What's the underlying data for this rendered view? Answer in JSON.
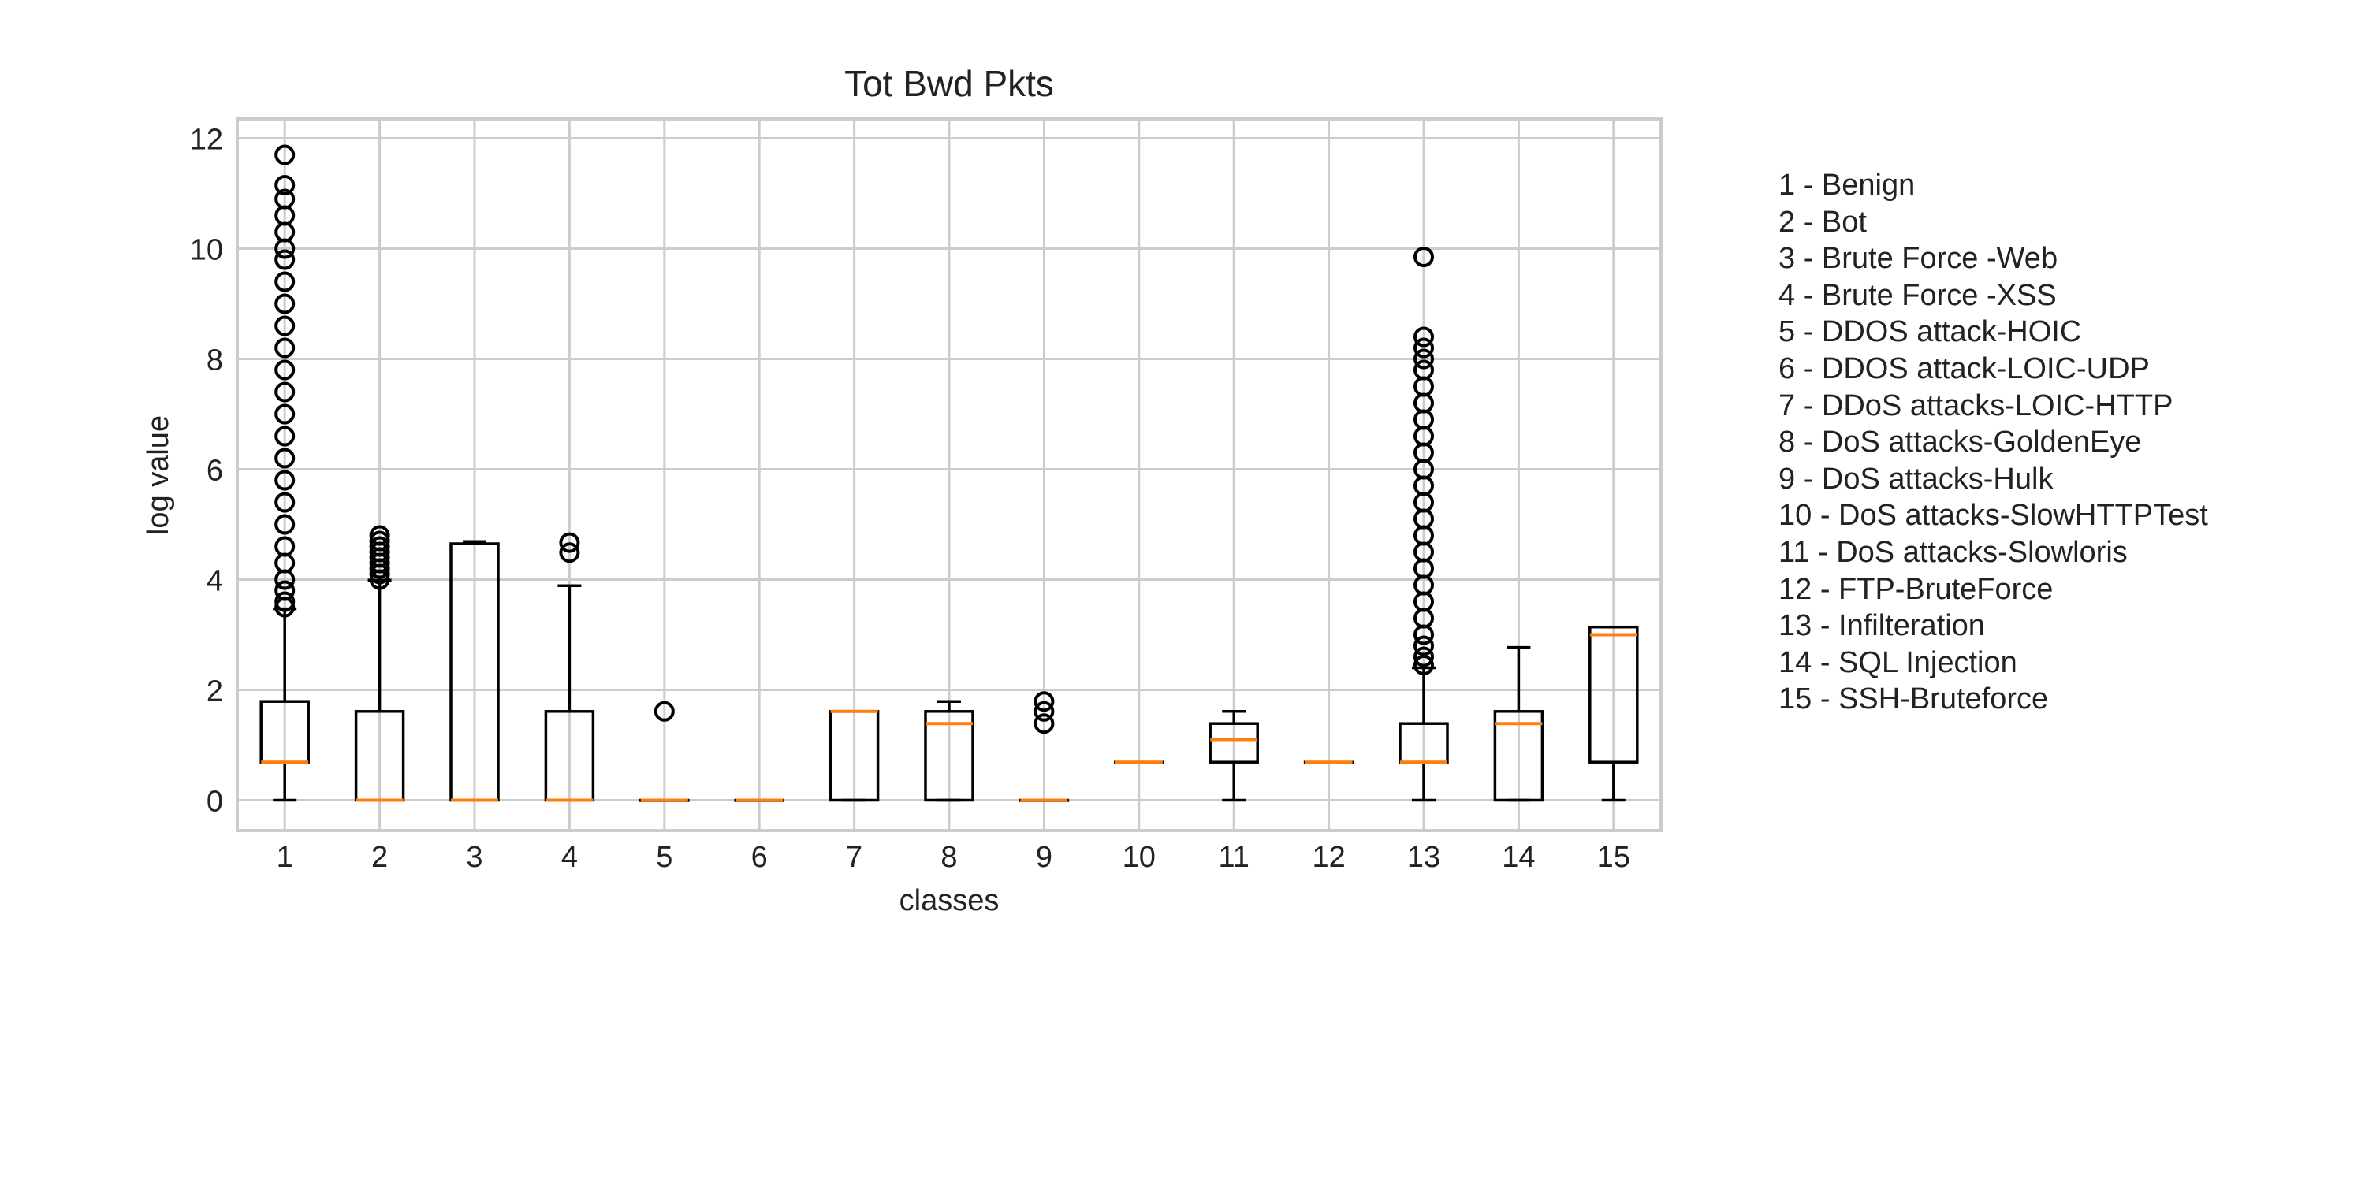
{
  "chart_data": {
    "type": "box",
    "title": "Tot Bwd Pkts",
    "xlabel": "classes",
    "ylabel": "log value",
    "ylim": [
      -0.55,
      12.35
    ],
    "yticks": [
      0,
      2,
      4,
      6,
      8,
      10,
      12
    ],
    "grid": true,
    "categories": [
      "1",
      "2",
      "3",
      "4",
      "5",
      "6",
      "7",
      "8",
      "9",
      "10",
      "11",
      "12",
      "13",
      "14",
      "15"
    ],
    "boxes": [
      {
        "class": "1",
        "whisker_low": 0,
        "q1": 0.69,
        "median": 0.69,
        "q3": 1.79,
        "whisker_high": 3.47,
        "outliers": [
          3.5,
          3.6,
          3.8,
          4.0,
          4.3,
          4.6,
          5.0,
          5.4,
          5.8,
          6.2,
          6.6,
          7.0,
          7.4,
          7.8,
          8.2,
          8.6,
          9.0,
          9.4,
          9.8,
          10.0,
          10.3,
          10.6,
          10.9,
          11.15,
          11.7
        ]
      },
      {
        "class": "2",
        "whisker_low": 0,
        "q1": 0,
        "median": 0,
        "q3": 1.61,
        "whisker_high": 3.99,
        "outliers": [
          4.0,
          4.1,
          4.2,
          4.3,
          4.4,
          4.5,
          4.6,
          4.7,
          4.8
        ]
      },
      {
        "class": "3",
        "whisker_low": 0,
        "q1": 0,
        "median": 0,
        "q3": 4.65,
        "whisker_high": 4.69,
        "outliers": []
      },
      {
        "class": "4",
        "whisker_low": 0,
        "q1": 0,
        "median": 0,
        "q3": 1.61,
        "whisker_high": 3.89,
        "outliers": [
          4.49,
          4.67
        ]
      },
      {
        "class": "5",
        "whisker_low": 0,
        "q1": 0,
        "median": 0,
        "q3": 0,
        "whisker_high": 0,
        "outliers": [
          1.61
        ]
      },
      {
        "class": "6",
        "whisker_low": 0,
        "q1": 0,
        "median": 0,
        "q3": 0,
        "whisker_high": 0,
        "outliers": []
      },
      {
        "class": "7",
        "whisker_low": 0,
        "q1": 0,
        "median": 1.61,
        "q3": 1.61,
        "whisker_high": 1.61,
        "outliers": []
      },
      {
        "class": "8",
        "whisker_low": 0,
        "q1": 0,
        "median": 1.39,
        "q3": 1.61,
        "whisker_high": 1.79,
        "outliers": []
      },
      {
        "class": "9",
        "whisker_low": 0,
        "q1": 0,
        "median": 0,
        "q3": 0,
        "whisker_high": 0,
        "outliers": [
          1.39,
          1.61,
          1.79
        ]
      },
      {
        "class": "10",
        "whisker_low": 0.69,
        "q1": 0.69,
        "median": 0.69,
        "q3": 0.69,
        "whisker_high": 0.69,
        "outliers": []
      },
      {
        "class": "11",
        "whisker_low": 0,
        "q1": 0.69,
        "median": 1.1,
        "q3": 1.39,
        "whisker_high": 1.61,
        "outliers": []
      },
      {
        "class": "12",
        "whisker_low": 0.69,
        "q1": 0.69,
        "median": 0.69,
        "q3": 0.69,
        "whisker_high": 0.69,
        "outliers": []
      },
      {
        "class": "13",
        "whisker_low": 0,
        "q1": 0.69,
        "median": 0.69,
        "q3": 1.39,
        "whisker_high": 2.4,
        "outliers": [
          2.45,
          2.6,
          2.8,
          3.0,
          3.3,
          3.6,
          3.9,
          4.2,
          4.5,
          4.8,
          5.1,
          5.4,
          5.7,
          6.0,
          6.3,
          6.6,
          6.9,
          7.2,
          7.5,
          7.8,
          8.0,
          8.2,
          8.4,
          9.85
        ]
      },
      {
        "class": "14",
        "whisker_low": 0,
        "q1": 0,
        "median": 1.39,
        "q3": 1.61,
        "whisker_high": 2.77,
        "outliers": []
      },
      {
        "class": "15",
        "whisker_low": 0,
        "q1": 0.69,
        "median": 3.0,
        "q3": 3.14,
        "whisker_high": 3.14,
        "outliers": []
      }
    ],
    "legend": [
      "1 - Benign",
      "2 - Bot",
      "3 - Brute Force -Web",
      "4 - Brute Force -XSS",
      "5 - DDOS attack-HOIC",
      "6 - DDOS attack-LOIC-UDP",
      "7 - DDoS attacks-LOIC-HTTP",
      "8 - DoS attacks-GoldenEye",
      "9 - DoS attacks-Hulk",
      "10 - DoS attacks-SlowHTTPTest",
      "11 - DoS attacks-Slowloris",
      "12 - FTP-BruteForce",
      "13 - Infilteration",
      "14 - SQL Injection",
      "15 - SSH-Bruteforce"
    ],
    "colors": {
      "box": "#000000",
      "median": "#ff7f0e",
      "grid": "#cccccc",
      "frame": "#cccccc",
      "text": "#222222"
    }
  }
}
